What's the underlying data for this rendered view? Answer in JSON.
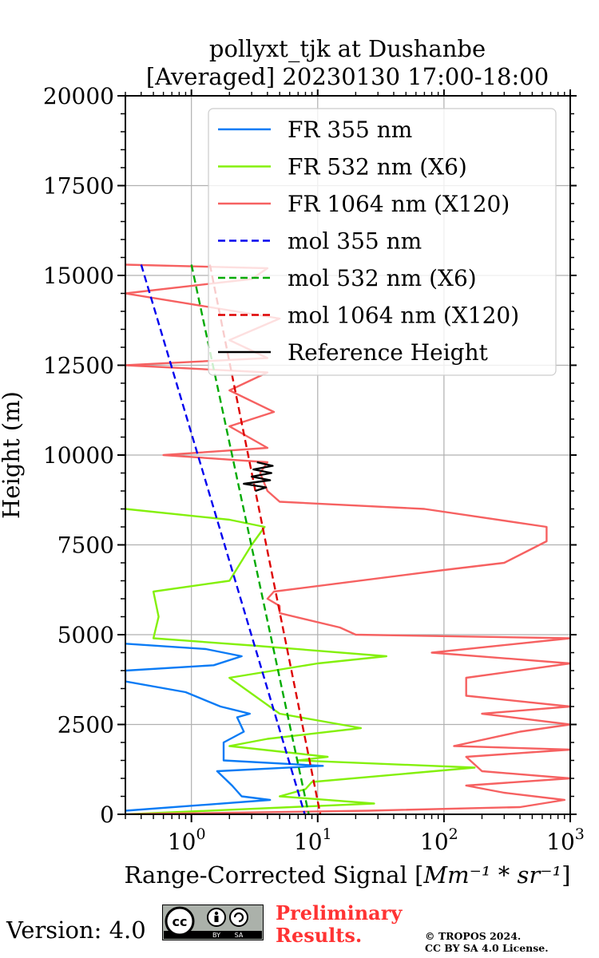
{
  "chart_data": {
    "type": "line",
    "title": "pollyxt_tjk at Dushanbe",
    "subtitle": "[Averaged] 20230130 17:00-18:00",
    "xlabel": "Range-Corrected Signal [$Mm^{-1}*sr^{-1}$]",
    "xlabel_text": "Range-Corrected Signal [",
    "xlabel_unit": "Mm⁻¹ * sr⁻¹",
    "xlabel_close": "]",
    "ylabel": "Height (m)",
    "xscale": "log",
    "xlim": [
      0.3,
      1000
    ],
    "ylim": [
      0,
      20000
    ],
    "grid": true,
    "legend_position": "upper-right",
    "y_ticks": [
      0,
      2500,
      5000,
      7500,
      10000,
      12500,
      15000,
      17500,
      20000
    ],
    "y_tick_labels": [
      "0",
      "2500",
      "5000",
      "7500",
      "10000",
      "12500",
      "15000",
      "17500",
      "20000"
    ],
    "x_ticks": [
      1,
      10,
      100,
      1000
    ],
    "x_tick_labels": [
      {
        "base": "10",
        "exp": "0"
      },
      {
        "base": "10",
        "exp": "1"
      },
      {
        "base": "10",
        "exp": "2"
      },
      {
        "base": "10",
        "exp": "3"
      }
    ],
    "series": [
      {
        "name": "FR 355 nm",
        "color": "#0a7bf5",
        "style": "solid",
        "points": [
          [
            0.3,
            100
          ],
          [
            4.2,
            400
          ],
          [
            2.5,
            500
          ],
          [
            2.1,
            800
          ],
          [
            1.6,
            1200
          ],
          [
            11,
            1350
          ],
          [
            1.8,
            1500
          ],
          [
            1.8,
            2000
          ],
          [
            2.6,
            2300
          ],
          [
            2.3,
            2700
          ],
          [
            2.9,
            2800
          ],
          [
            1.7,
            3000
          ],
          [
            0.9,
            3400
          ],
          [
            0.3,
            3700
          ],
          [
            0.3,
            4000
          ],
          [
            1.5,
            4150
          ],
          [
            2.5,
            4400
          ],
          [
            1.3,
            4600
          ],
          [
            0.3,
            4750
          ]
        ]
      },
      {
        "name": "FR 532 nm (X6)",
        "color": "#84f00c",
        "style": "solid",
        "points": [
          [
            0.3,
            0
          ],
          [
            28,
            300
          ],
          [
            5,
            500
          ],
          [
            8,
            700
          ],
          [
            9,
            900
          ],
          [
            175,
            1300
          ],
          [
            7,
            1500
          ],
          [
            12,
            1600
          ],
          [
            2,
            1900
          ],
          [
            4,
            2100
          ],
          [
            22,
            2400
          ],
          [
            5,
            2800
          ],
          [
            2,
            3800
          ],
          [
            10,
            4200
          ],
          [
            35,
            4400
          ],
          [
            3,
            4700
          ],
          [
            0.5,
            4900
          ],
          [
            0.55,
            5500
          ],
          [
            0.5,
            6200
          ],
          [
            2,
            6500
          ],
          [
            3,
            7500
          ],
          [
            3.8,
            8000
          ],
          [
            2,
            8200
          ],
          [
            0.3,
            8500
          ]
        ]
      },
      {
        "name": "FR 1064 nm (X120)",
        "color": "#f66161",
        "style": "solid",
        "points": [
          [
            0.3,
            0
          ],
          [
            25,
            100
          ],
          [
            400,
            200
          ],
          [
            900,
            400
          ],
          [
            300,
            600
          ],
          [
            150,
            800
          ],
          [
            1000,
            1000
          ],
          [
            200,
            1200
          ],
          [
            150,
            1600
          ],
          [
            1000,
            1800
          ],
          [
            120,
            1900
          ],
          [
            400,
            2300
          ],
          [
            1000,
            2500
          ],
          [
            200,
            2800
          ],
          [
            1000,
            3000
          ],
          [
            150,
            3300
          ],
          [
            150,
            3800
          ],
          [
            1000,
            4200
          ],
          [
            80,
            4500
          ],
          [
            1000,
            4900
          ],
          [
            20,
            5000
          ],
          [
            15,
            5200
          ],
          [
            5,
            5600
          ],
          [
            5,
            5800
          ],
          [
            4,
            6000
          ],
          [
            4.5,
            6200
          ],
          [
            100,
            6800
          ],
          [
            300,
            7000
          ],
          [
            650,
            7600
          ],
          [
            650,
            8000
          ],
          [
            70,
            8500
          ],
          [
            5,
            8700
          ],
          [
            4,
            9000
          ],
          [
            3.5,
            9500
          ],
          [
            4,
            9800
          ],
          [
            0.6,
            10000
          ],
          [
            4,
            10200
          ],
          [
            2,
            10800
          ],
          [
            4.5,
            11200
          ],
          [
            2,
            11800
          ],
          [
            4,
            12300
          ],
          [
            0.3,
            12500
          ],
          [
            4,
            12700
          ],
          [
            2,
            13200
          ],
          [
            5,
            13800
          ],
          [
            0.3,
            14500
          ],
          [
            3,
            14900
          ],
          [
            4,
            15200
          ],
          [
            0.3,
            15300
          ]
        ]
      },
      {
        "name": "mol 355 nm",
        "color": "#0000ee",
        "style": "dashed",
        "points": [
          [
            0.4,
            15300
          ],
          [
            7.9,
            0
          ]
        ]
      },
      {
        "name": "mol 532 nm (X6)",
        "color": "#00aa00",
        "style": "dashed",
        "points": [
          [
            1.0,
            15300
          ],
          [
            8.5,
            0
          ]
        ]
      },
      {
        "name": "mol 1064 nm (X120)",
        "color": "#dd0000",
        "style": "dashed",
        "points": [
          [
            1.4,
            15300
          ],
          [
            10.5,
            0
          ]
        ]
      },
      {
        "name": "Reference Height",
        "color": "#000000",
        "style": "solid",
        "points": [
          [
            3.2,
            9000
          ],
          [
            3.9,
            9100
          ],
          [
            2.6,
            9200
          ],
          [
            4.2,
            9300
          ],
          [
            3.0,
            9400
          ],
          [
            4.3,
            9500
          ],
          [
            3.1,
            9600
          ],
          [
            4.4,
            9700
          ],
          [
            3.3,
            9800
          ]
        ]
      }
    ]
  },
  "footer": {
    "version": "Version: 4.0",
    "cc_label": "cc",
    "cc_by": "BY",
    "cc_sa": "SA",
    "preliminary_line1": "Preliminary",
    "preliminary_line2": "Results.",
    "copyright_line1": "© TROPOS 2024.",
    "copyright_line2": "CC BY SA 4.0 License."
  }
}
